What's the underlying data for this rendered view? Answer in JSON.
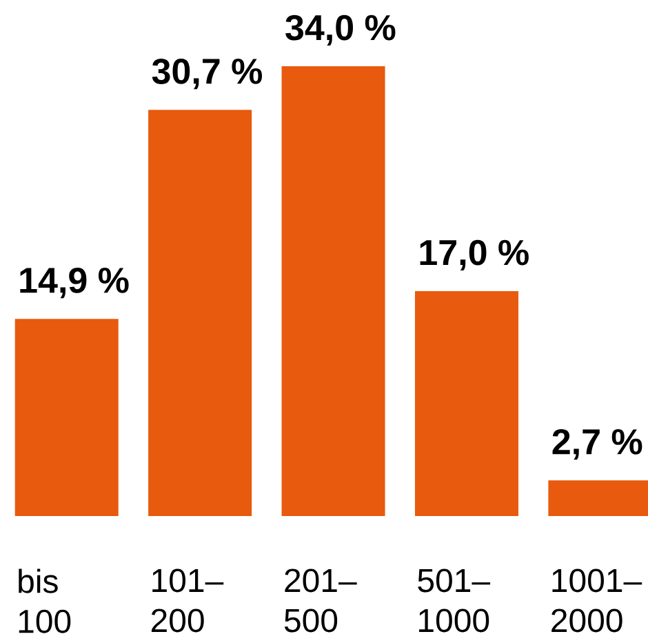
{
  "chart_data": {
    "type": "bar",
    "categories": [
      "bis 100",
      "101–200",
      "201–500",
      "501–1000",
      "1001–2000"
    ],
    "values": [
      14.9,
      30.7,
      34.0,
      17.0,
      2.7
    ],
    "color": "#e85a0e",
    "value_labels": [
      "14,9 %",
      "30,7 %",
      "34,0 %",
      "17,0 %",
      "2,7 %"
    ]
  }
}
